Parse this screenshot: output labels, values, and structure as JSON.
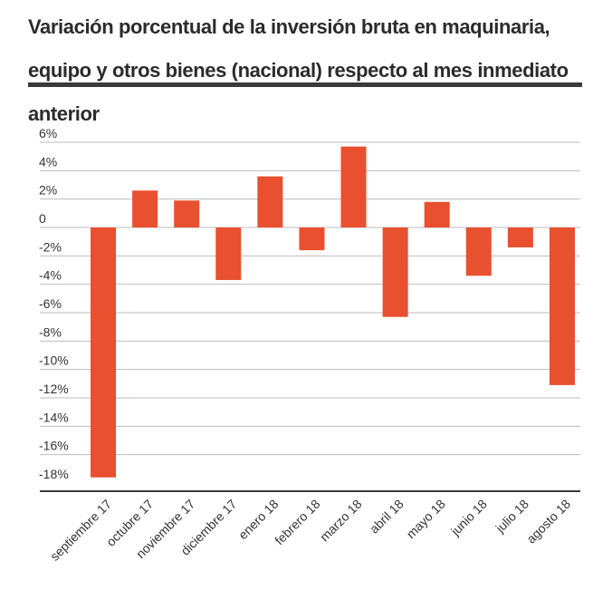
{
  "title": "Variación porcentual de la inversión bruta en maquinaria, equipo y otros bienes (nacional) respecto al mes inmediato anterior",
  "colors": {
    "bar": "#e8502f",
    "grid": "#bdbdbd",
    "axis": "#3a3a3a",
    "title_rule": "#3a3a3a"
  },
  "chart_data": {
    "type": "bar",
    "title": "Variación porcentual de la inversión bruta en maquinaria, equipo y otros bienes (nacional) respecto al mes inmediato anterior",
    "xlabel": "",
    "ylabel": "",
    "categories": [
      "septiembre 17",
      "octubre 17",
      "noviembre 17",
      "diciembre 17",
      "enero 18",
      "febrero 18",
      "marzo 18",
      "abril 18",
      "mayo 18",
      "junio 18",
      "julio 18",
      "agosto 18"
    ],
    "values": [
      -17.6,
      2.6,
      1.9,
      -3.7,
      3.6,
      -1.6,
      5.7,
      -6.3,
      1.8,
      -3.4,
      -1.4,
      -11.1
    ],
    "ylim": [
      -18,
      6
    ],
    "yticks": [
      6,
      4,
      2,
      0,
      -2,
      -4,
      -6,
      -8,
      -10,
      -12,
      -14,
      -16,
      -18
    ],
    "ytick_labels": [
      "6%",
      "4%",
      "2%",
      "0",
      "-2%",
      "-4%",
      "-6%",
      "-8%",
      "-10%",
      "-12%",
      "-14%",
      "-16%",
      "-18%"
    ],
    "grid": true,
    "legend": false
  }
}
